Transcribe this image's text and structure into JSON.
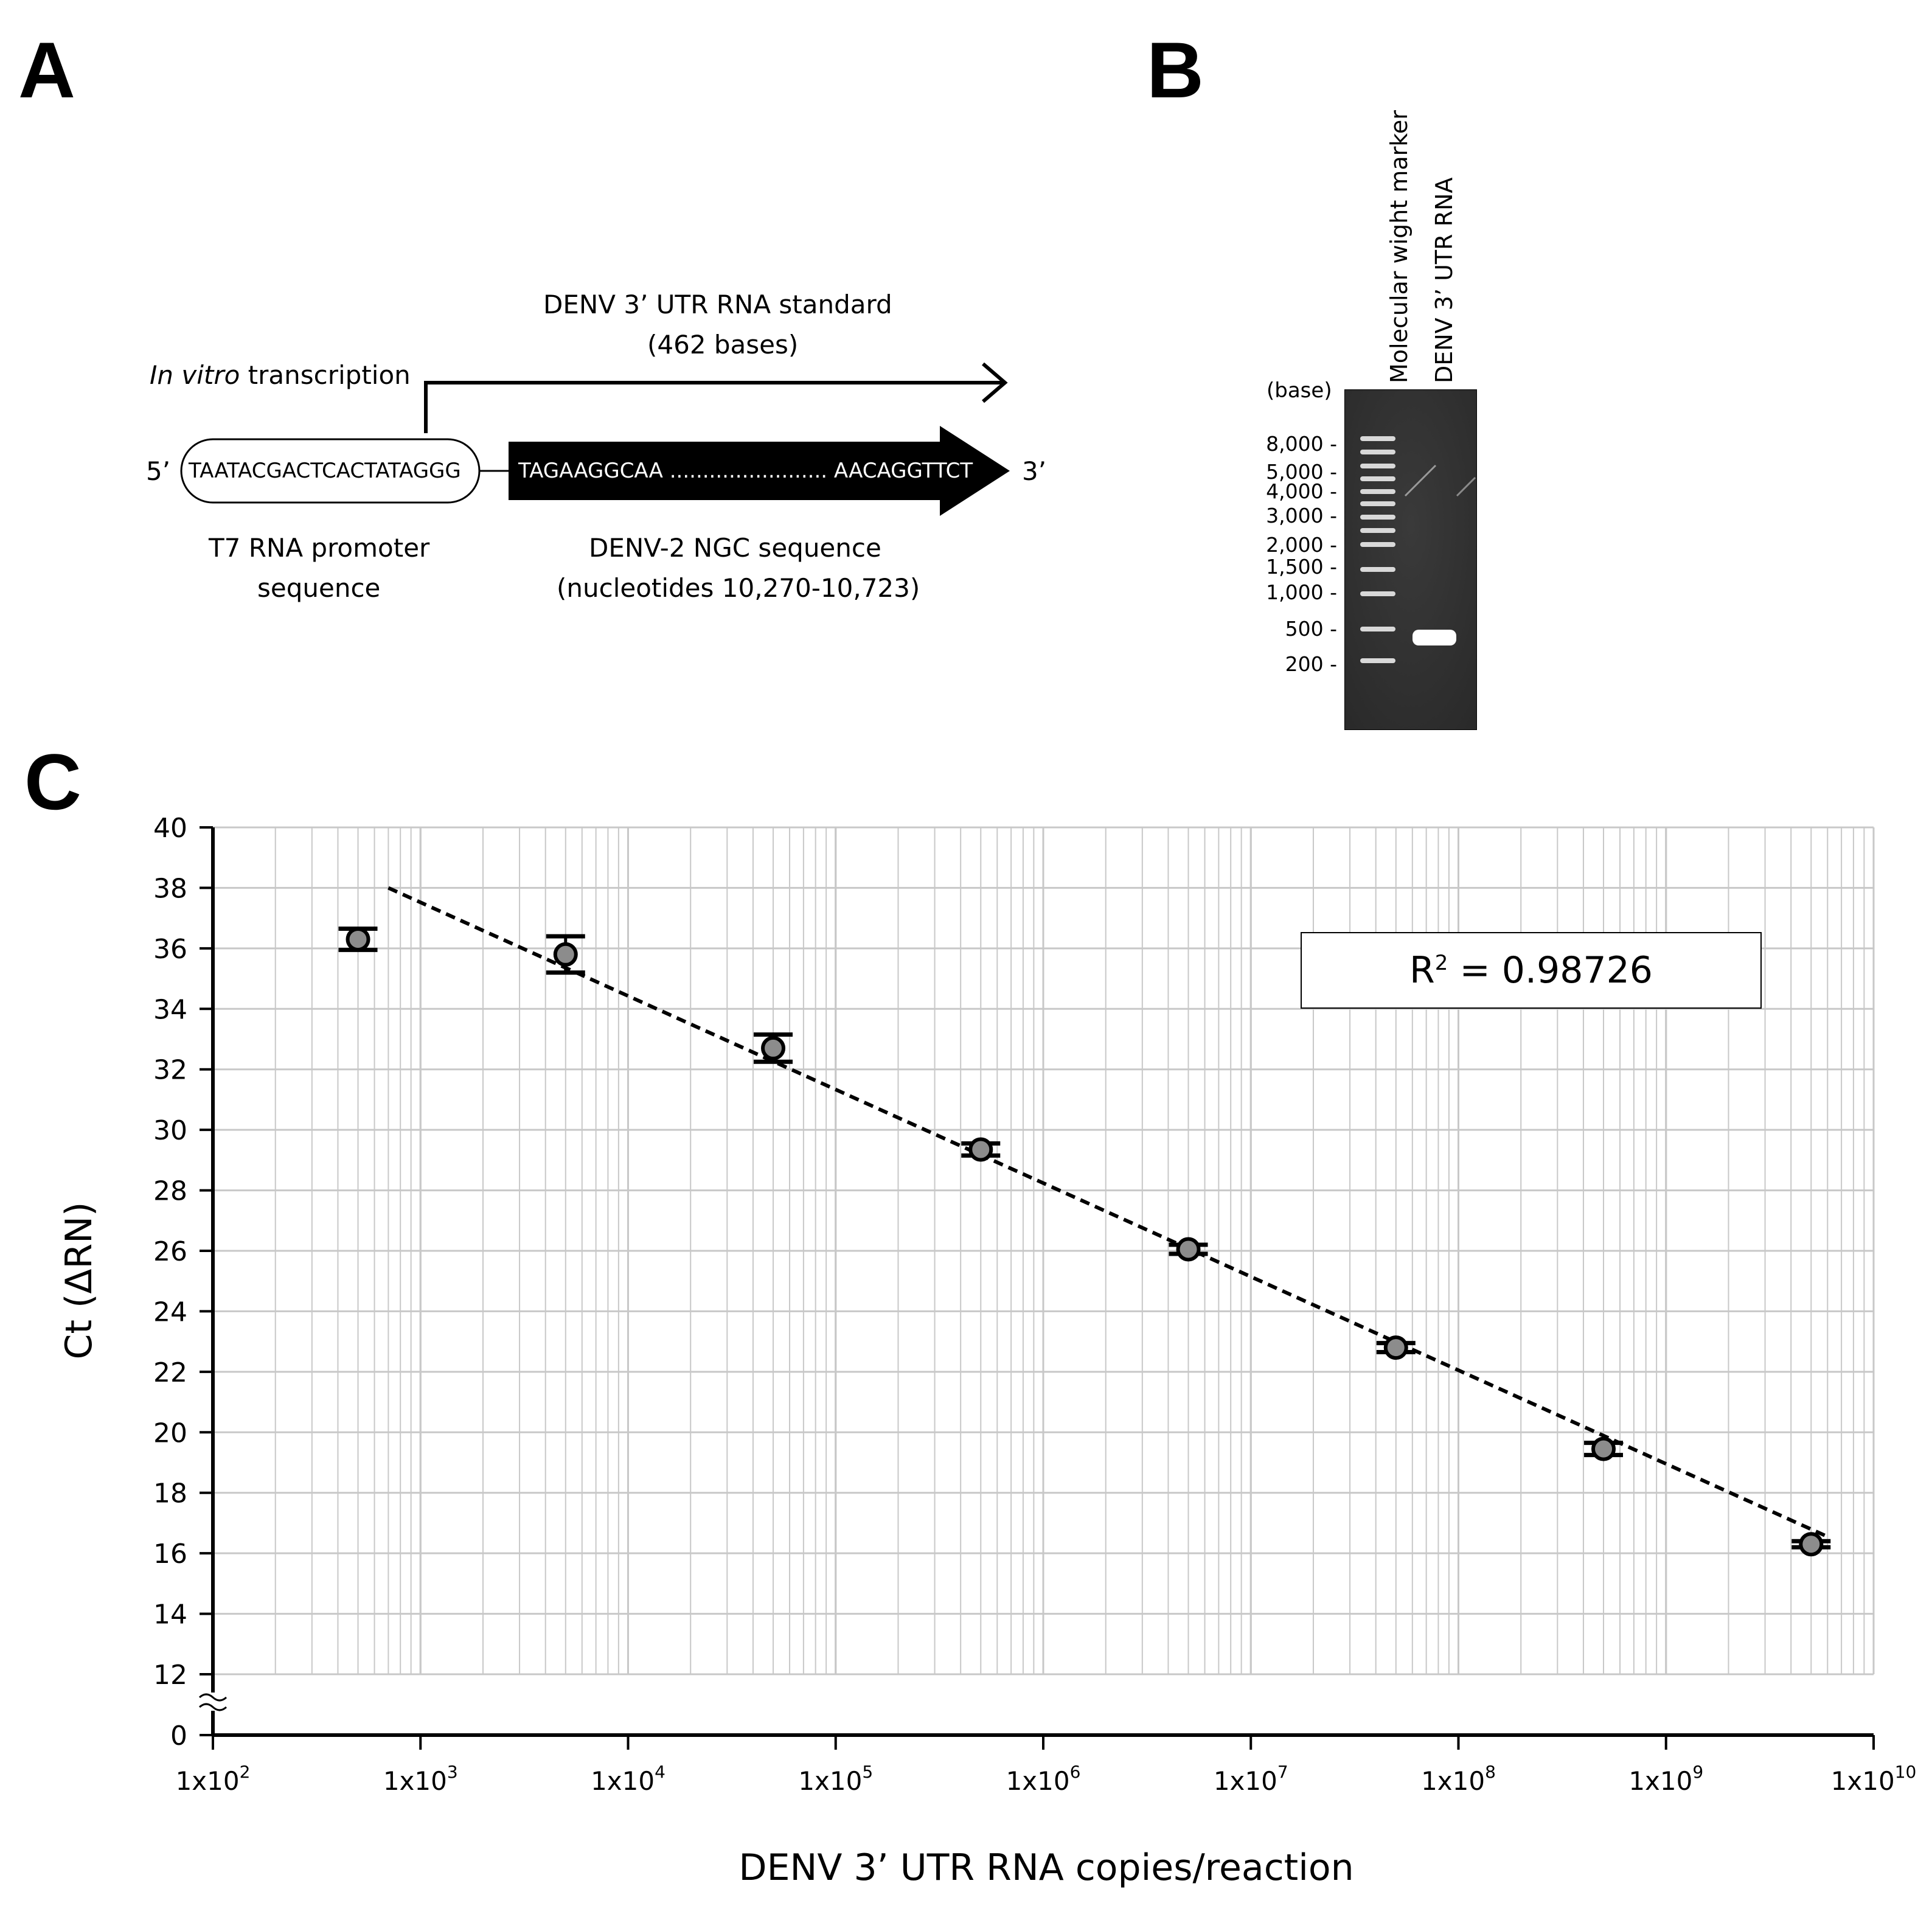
{
  "panels": {
    "a": "A",
    "b": "B",
    "c": "C"
  },
  "panel_a": {
    "transcription_label_italic": "In vitro",
    "transcription_label_rest": " transcription",
    "standard_title": "DENV 3’  UTR RNA standard",
    "standard_length": "(462 bases)",
    "five_prime": "5’",
    "three_prime": "3’",
    "promoter_seq": "TAATACGACTCACTATAGGG",
    "ngc_seq": "TAGAAGGCAA ........................ AACAGGTTCT",
    "promoter_label_1": "T7 RNA promoter",
    "promoter_label_2": "sequence",
    "ngc_label_1": "DENV-2 NGC sequence",
    "ngc_label_2": "(nucleotides 10,270-10,723)"
  },
  "panel_b": {
    "lane1_label": "Molecular wight marker",
    "lane2_label": "DENV 3’  UTR RNA",
    "unit_label": "(base)",
    "marker_labels": [
      "8,000 -",
      "5,000 -",
      "4,000 -",
      "3,000 -",
      "2,000 -",
      "1,500 -",
      "1,000 -",
      "500 -",
      "200 -"
    ]
  },
  "chart_data": {
    "type": "scatter",
    "xscale": "log",
    "xlim": [
      100,
      10000000000
    ],
    "ylim": [
      0,
      40
    ],
    "y_axis_break": [
      0,
      12
    ],
    "xlabel": "DENV 3’  UTR RNA copies/reaction",
    "ylabel": "Ct (ΔRN)",
    "xticks": [
      {
        "base": "1x10",
        "exp": "2"
      },
      {
        "base": "1x10",
        "exp": "3"
      },
      {
        "base": "1x10",
        "exp": "4"
      },
      {
        "base": "1x10",
        "exp": "5"
      },
      {
        "base": "1x10",
        "exp": "6"
      },
      {
        "base": "1x10",
        "exp": "7"
      },
      {
        "base": "1x10",
        "exp": "8"
      },
      {
        "base": "1x10",
        "exp": "9"
      },
      {
        "base": "1x10",
        "exp": "10"
      }
    ],
    "yticks": [
      "40",
      "38",
      "36",
      "34",
      "32",
      "30",
      "28",
      "26",
      "24",
      "22",
      "20",
      "18",
      "16",
      "14",
      "12",
      "0"
    ],
    "series": [
      {
        "name": "Ct",
        "x": [
          500,
          5000,
          50000,
          500000,
          5000000,
          50000000,
          500000000,
          5000000000
        ],
        "y": [
          36.3,
          35.8,
          32.7,
          29.35,
          26.05,
          22.8,
          19.45,
          16.3
        ],
        "err": [
          0.35,
          0.6,
          0.45,
          0.2,
          0.15,
          0.15,
          0.2,
          0.1
        ]
      }
    ],
    "trendline": {
      "x": [
        700,
        6000000000
      ],
      "y": [
        38.0,
        16.55
      ],
      "style": "dashed"
    },
    "annotation": {
      "label": "R",
      "sup": "2",
      "value": " = 0.98726"
    }
  }
}
